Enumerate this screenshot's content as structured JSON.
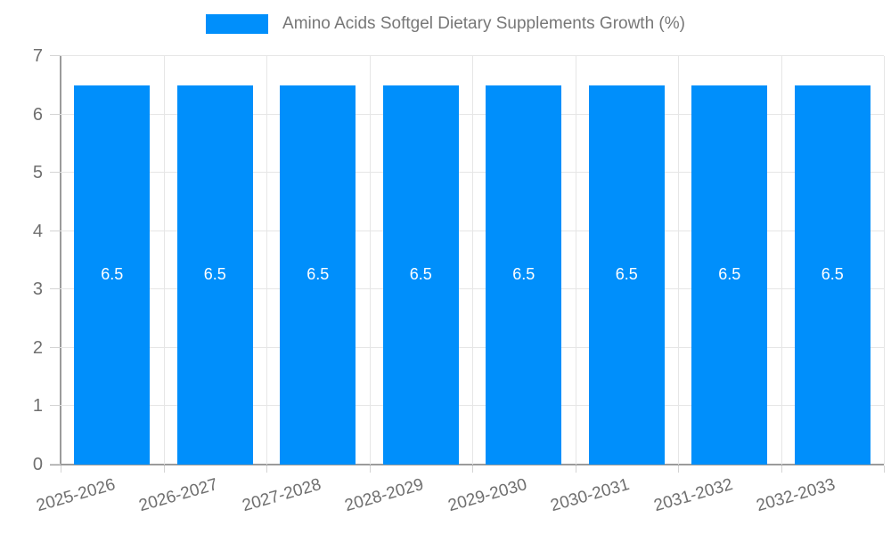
{
  "legend": {
    "label": "Amino Acids Softgel Dietary Supplements Growth (%)",
    "swatch_color": "#008FFB"
  },
  "chart_data": {
    "type": "bar",
    "title": "Amino Acids Softgel Dietary Supplements Growth (%)",
    "categories": [
      "2025-2026",
      "2026-2027",
      "2027-2028",
      "2028-2029",
      "2029-2030",
      "2030-2031",
      "2031-2032",
      "2032-2033"
    ],
    "series": [
      {
        "name": "Amino Acids Softgel Dietary Supplements Growth (%)",
        "values": [
          6.5,
          6.5,
          6.5,
          6.5,
          6.5,
          6.5,
          6.5,
          6.5
        ]
      }
    ],
    "value_labels": [
      "6.5",
      "6.5",
      "6.5",
      "6.5",
      "6.5",
      "6.5",
      "6.5",
      "6.5"
    ],
    "xlabel": "",
    "ylabel": "",
    "ylim": [
      0,
      7
    ],
    "yticks": [
      0,
      1,
      2,
      3,
      4,
      5,
      6,
      7
    ],
    "grid": true,
    "legend_position": "top",
    "colors": {
      "bar": "#008FFB",
      "axis": "#9b9b9b",
      "gridline": "#e6e6e6",
      "tick": "#d4d4d4",
      "axis_label": "#6f6f6f",
      "legend_text": "#777777",
      "value_label": "#ffffff"
    }
  }
}
